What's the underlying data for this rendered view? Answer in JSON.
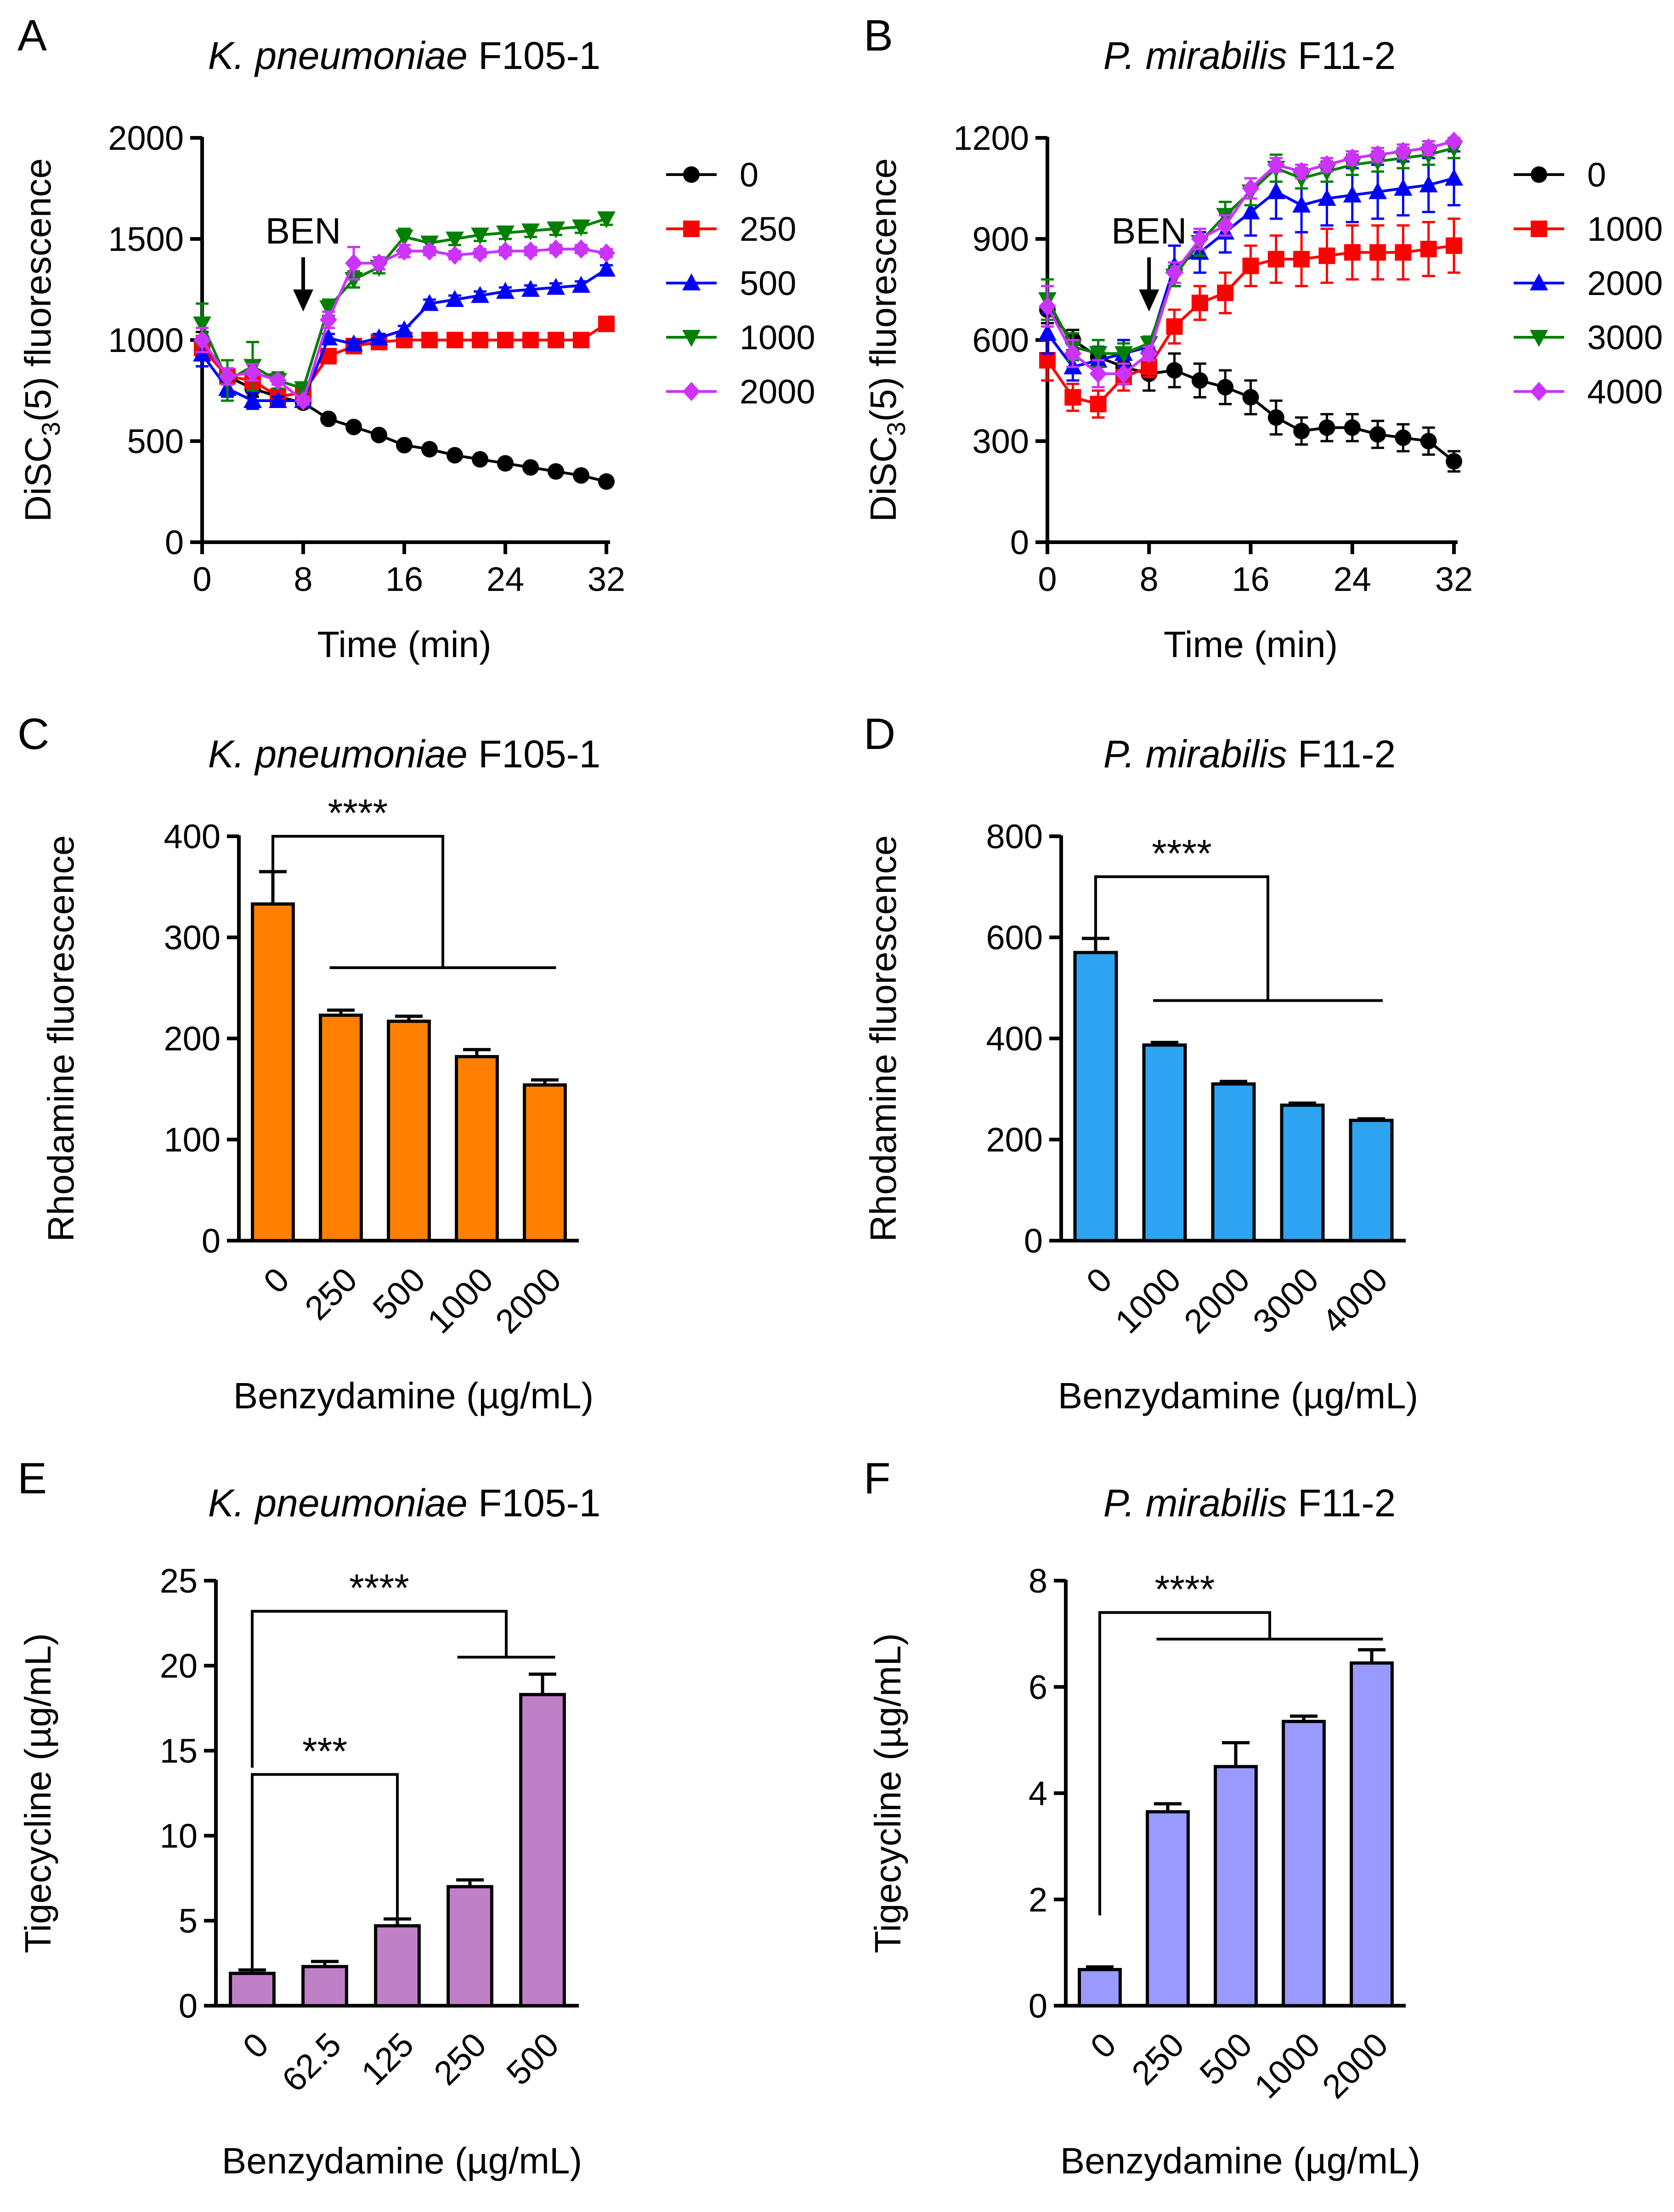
{
  "figure": {
    "description_free": true
  },
  "chart_data": [
    {
      "panel": "A",
      "type": "line",
      "title": "K. pneumoniae F105-1",
      "title_italic": "K. pneumoniae",
      "title_rest": "F105-1",
      "xlabel": "Time (min)",
      "ylabel_parts": [
        "DiSC",
        "3",
        "(5) fluorescence"
      ],
      "xlim": [
        0,
        32
      ],
      "ylim": [
        0,
        2000
      ],
      "xticks": [
        0,
        8,
        16,
        24,
        32
      ],
      "yticks": [
        0,
        500,
        1000,
        1500,
        2000
      ],
      "annotation": "BEN",
      "annotation_x": 8,
      "legend_position": "right",
      "x": [
        0,
        2,
        4,
        6,
        8,
        10,
        12,
        14,
        16,
        18,
        20,
        22,
        24,
        26,
        28,
        30,
        32
      ],
      "series": [
        {
          "name": "0",
          "color": "#000000",
          "marker": "circle",
          "values": [
            980,
            820,
            760,
            720,
            690,
            610,
            570,
            530,
            480,
            460,
            430,
            410,
            390,
            370,
            350,
            330,
            300
          ],
          "err": [
            60,
            40,
            40,
            30,
            20,
            0,
            0,
            0,
            0,
            0,
            0,
            0,
            0,
            0,
            0,
            0,
            0
          ]
        },
        {
          "name": "250",
          "color": "#ff0000",
          "marker": "square",
          "values": [
            960,
            820,
            800,
            720,
            740,
            920,
            970,
            990,
            1000,
            1000,
            1000,
            1000,
            1000,
            1000,
            1000,
            1000,
            1080
          ],
          "err": [
            60,
            40,
            40,
            20,
            20,
            20,
            10,
            10,
            10,
            10,
            10,
            10,
            10,
            10,
            10,
            10,
            20
          ]
        },
        {
          "name": "500",
          "color": "#0000ff",
          "marker": "triangle-up",
          "values": [
            930,
            760,
            700,
            700,
            700,
            1010,
            980,
            1010,
            1050,
            1180,
            1200,
            1220,
            1240,
            1250,
            1260,
            1270,
            1350
          ],
          "err": [
            60,
            40,
            40,
            20,
            20,
            20,
            20,
            20,
            20,
            20,
            20,
            20,
            20,
            20,
            20,
            20,
            20
          ]
        },
        {
          "name": "1000",
          "color": "#008000",
          "marker": "triangle-down",
          "values": [
            1080,
            800,
            870,
            800,
            760,
            1160,
            1300,
            1360,
            1510,
            1480,
            1500,
            1520,
            1530,
            1540,
            1550,
            1560,
            1600
          ],
          "err": [
            100,
            100,
            120,
            40,
            20,
            40,
            40,
            30,
            40,
            30,
            30,
            30,
            30,
            30,
            30,
            30,
            30
          ]
        },
        {
          "name": "2000",
          "color": "#cc33ff",
          "marker": "diamond",
          "values": [
            1000,
            820,
            840,
            800,
            700,
            1100,
            1380,
            1380,
            1440,
            1440,
            1420,
            1430,
            1440,
            1440,
            1450,
            1450,
            1430
          ],
          "err": [
            60,
            40,
            40,
            20,
            20,
            40,
            80,
            30,
            30,
            20,
            20,
            20,
            20,
            20,
            20,
            20,
            20
          ]
        }
      ]
    },
    {
      "panel": "B",
      "type": "line",
      "title": "P. mirabilis F11-2",
      "title_italic": "P. mirabilis",
      "title_rest": "F11-2",
      "xlabel": "Time (min)",
      "ylabel_parts": [
        "DiSC",
        "3",
        "(5) fluorescence"
      ],
      "xlim": [
        0,
        32
      ],
      "ylim": [
        0,
        1200
      ],
      "xticks": [
        0,
        8,
        16,
        24,
        32
      ],
      "yticks": [
        0,
        300,
        600,
        900,
        1200
      ],
      "annotation": "BEN",
      "annotation_x": 8,
      "legend_position": "right",
      "x": [
        0,
        2,
        4,
        6,
        8,
        10,
        12,
        14,
        16,
        18,
        20,
        22,
        24,
        26,
        28,
        30,
        32
      ],
      "series": [
        {
          "name": "0",
          "color": "#000000",
          "marker": "circle",
          "values": [
            690,
            600,
            550,
            520,
            500,
            510,
            480,
            460,
            430,
            370,
            330,
            340,
            340,
            320,
            310,
            300,
            240
          ],
          "err": [
            40,
            30,
            30,
            40,
            50,
            50,
            50,
            50,
            50,
            50,
            40,
            40,
            40,
            40,
            40,
            40,
            30
          ]
        },
        {
          "name": "1000",
          "color": "#ff0000",
          "marker": "square",
          "values": [
            540,
            430,
            410,
            490,
            520,
            640,
            710,
            740,
            820,
            840,
            840,
            850,
            860,
            860,
            860,
            870,
            880
          ],
          "err": [
            60,
            40,
            40,
            40,
            30,
            50,
            50,
            60,
            60,
            70,
            80,
            80,
            80,
            80,
            80,
            80,
            80
          ]
        },
        {
          "name": "2000",
          "color": "#0000ff",
          "marker": "triangle-up",
          "values": [
            620,
            520,
            540,
            560,
            580,
            820,
            860,
            920,
            980,
            1040,
            1000,
            1020,
            1030,
            1040,
            1050,
            1060,
            1080
          ],
          "err": [
            60,
            40,
            40,
            40,
            30,
            60,
            60,
            60,
            70,
            80,
            80,
            80,
            80,
            80,
            80,
            80,
            80
          ]
        },
        {
          "name": "3000",
          "color": "#008000",
          "marker": "triangle-down",
          "values": [
            720,
            580,
            560,
            560,
            590,
            790,
            890,
            970,
            1040,
            1110,
            1080,
            1100,
            1120,
            1130,
            1140,
            1150,
            1170
          ],
          "err": [
            60,
            40,
            40,
            30,
            20,
            30,
            40,
            40,
            40,
            40,
            30,
            30,
            30,
            30,
            30,
            30,
            30
          ]
        },
        {
          "name": "4000",
          "color": "#cc33ff",
          "marker": "diamond",
          "values": [
            700,
            560,
            500,
            500,
            560,
            800,
            900,
            940,
            1050,
            1120,
            1100,
            1120,
            1140,
            1150,
            1160,
            1170,
            1190
          ],
          "err": [
            60,
            40,
            40,
            30,
            20,
            30,
            30,
            30,
            30,
            20,
            20,
            20,
            20,
            20,
            20,
            20,
            10
          ]
        }
      ]
    },
    {
      "panel": "C",
      "type": "bar",
      "title": "K. pneumoniae F105-1",
      "title_italic": "K. pneumoniae",
      "title_rest": "F105-1",
      "xlabel": "Benzydamine (µg/mL)",
      "ylabel": "Rhodamine fluorescence",
      "ylim": [
        0,
        400
      ],
      "yticks": [
        0,
        100,
        200,
        300,
        400
      ],
      "bar_color": "#ff8000",
      "categories": [
        "0",
        "250",
        "500",
        "1000",
        "2000"
      ],
      "values": [
        333,
        223,
        217,
        182,
        154
      ],
      "err": [
        32,
        5,
        5,
        7,
        5
      ],
      "significance": [
        {
          "label": "****",
          "from": 0,
          "to_range": [
            1,
            4
          ],
          "left_y": 340,
          "top_y": 400,
          "bottom_y": 270
        }
      ]
    },
    {
      "panel": "D",
      "type": "bar",
      "title": "P. mirabilis F11-2",
      "title_italic": "P. mirabilis",
      "title_rest": "F11-2",
      "xlabel": "Benzydamine (µg/mL)",
      "ylabel": "Rhodamine fluorescence",
      "ylim": [
        0,
        800
      ],
      "yticks": [
        0,
        200,
        400,
        600,
        800
      ],
      "bar_color": "#2ea3f2",
      "categories": [
        "0",
        "1000",
        "2000",
        "3000",
        "4000"
      ],
      "values": [
        570,
        387,
        310,
        268,
        238
      ],
      "err": [
        28,
        5,
        5,
        4,
        3
      ],
      "significance": [
        {
          "label": "****",
          "from": 0,
          "to_range": [
            1,
            4
          ],
          "left_y": 580,
          "top_y": 720,
          "bottom_y": 475
        }
      ]
    },
    {
      "panel": "E",
      "type": "bar",
      "title": "K. pneumoniae F105-1",
      "title_italic": "K. pneumoniae",
      "title_rest": "F105-1",
      "xlabel": "Benzydamine (µg/mL)",
      "ylabel": "Tigecycline (µg/mL)",
      "ylim": [
        0,
        25
      ],
      "yticks": [
        0,
        5,
        10,
        15,
        20,
        25
      ],
      "bar_color": "#c080c8",
      "categories": [
        "0",
        "62.5",
        "125",
        "250",
        "500"
      ],
      "values": [
        1.9,
        2.3,
        4.7,
        7.0,
        18.3
      ],
      "err": [
        0.2,
        0.3,
        0.4,
        0.4,
        1.2
      ],
      "significance": [
        {
          "label": "***",
          "from": 0,
          "to": 2,
          "left_y": 2.2,
          "top_y": 13.6,
          "right_y": 5.2
        },
        {
          "label": "****",
          "from": 0,
          "to_range": [
            3,
            4
          ],
          "left_y": 14.0,
          "top_y": 23.2,
          "bottom_y": 20.5
        }
      ]
    },
    {
      "panel": "F",
      "type": "bar",
      "title": "P. mirabilis F11-2",
      "title_italic": "P. mirabilis",
      "title_rest": "F11-2",
      "xlabel": "Benzydamine (µg/mL)",
      "ylabel": "Tigecycline (µg/mL)",
      "ylim": [
        0,
        8
      ],
      "yticks": [
        0,
        2,
        4,
        6,
        8
      ],
      "bar_color": "#9999ff",
      "categories": [
        "0",
        "250",
        "500",
        "1000",
        "2000"
      ],
      "values": [
        0.68,
        3.65,
        4.5,
        5.35,
        6.45
      ],
      "err": [
        0.05,
        0.15,
        0.45,
        0.1,
        0.25
      ],
      "significance": [
        {
          "label": "****",
          "from": 0,
          "to_range": [
            1,
            4
          ],
          "left_y": 1.7,
          "top_y": 7.4,
          "bottom_y": 6.9
        }
      ]
    }
  ]
}
